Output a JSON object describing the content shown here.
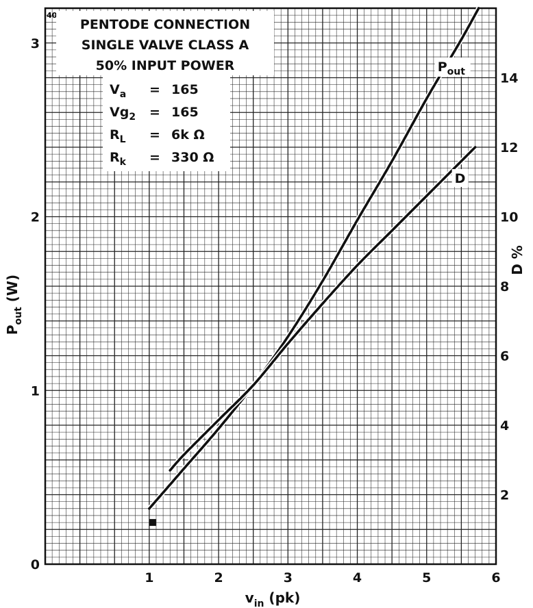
{
  "chart_data": {
    "type": "line",
    "xlabel": "v",
    "xlabel_sub": "in",
    "xlabel_suffix": " (pk)",
    "ylabel": "P",
    "ylabel_sub": "out",
    "ylabel_suffix": " (W)",
    "y2label": "D %",
    "xlim": [
      -0.5,
      6
    ],
    "ylim": [
      0,
      3.2
    ],
    "y2lim": [
      0,
      16
    ],
    "xticks": [
      {
        "value": 1,
        "label": "1"
      },
      {
        "value": 2,
        "label": "2"
      },
      {
        "value": 3,
        "label": "3"
      },
      {
        "value": 4,
        "label": "4"
      },
      {
        "value": 5,
        "label": "5"
      },
      {
        "value": 6,
        "label": "6"
      }
    ],
    "yticks": [
      {
        "value": 0,
        "label": "0"
      },
      {
        "value": 1,
        "label": "1"
      },
      {
        "value": 2,
        "label": "2"
      },
      {
        "value": 3,
        "label": "3"
      }
    ],
    "y2ticks": [
      {
        "value": 2,
        "label": "2"
      },
      {
        "value": 4,
        "label": "4"
      },
      {
        "value": 6,
        "label": "6"
      },
      {
        "value": 8,
        "label": "8"
      },
      {
        "value": 10,
        "label": "10"
      },
      {
        "value": 12,
        "label": "12"
      },
      {
        "value": 14,
        "label": "14"
      }
    ],
    "grid": true,
    "series": [
      {
        "name": "Pout",
        "label_main": "P",
        "label_sub": "out",
        "axis": "left",
        "x": [
          1.0,
          1.5,
          2.0,
          2.5,
          3.0,
          3.5,
          4.0,
          4.5,
          5.0,
          5.5,
          5.75
        ],
        "y": [
          0.32,
          0.55,
          0.78,
          1.03,
          1.31,
          1.63,
          1.98,
          2.32,
          2.68,
          3.02,
          3.2
        ]
      },
      {
        "name": "D",
        "label_main": "D",
        "axis": "right",
        "x": [
          1.3,
          1.5,
          2.0,
          2.5,
          3.0,
          3.5,
          4.0,
          4.5,
          5.0,
          5.5,
          5.7
        ],
        "y": [
          2.7,
          3.15,
          4.15,
          5.15,
          6.35,
          7.5,
          8.6,
          9.6,
          10.6,
          11.6,
          12.0
        ]
      }
    ],
    "marker": {
      "x": 1.05,
      "y": 0.24
    },
    "corner_label": "40",
    "annotations": {
      "title_lines": [
        "PENTODE CONNECTION",
        "SINGLE VALVE CLASS A",
        "50% INPUT POWER"
      ],
      "params": [
        {
          "sym": "V",
          "sub": "a",
          "eq": "=",
          "val": "165"
        },
        {
          "sym": "Vg",
          "sub": "2",
          "eq": "=",
          "val": "165"
        },
        {
          "sym": "R",
          "sub": "L",
          "eq": "=",
          "val": "6k Ω"
        },
        {
          "sym": "R",
          "sub": "k",
          "eq": "=",
          "val": "330 Ω"
        }
      ]
    }
  }
}
